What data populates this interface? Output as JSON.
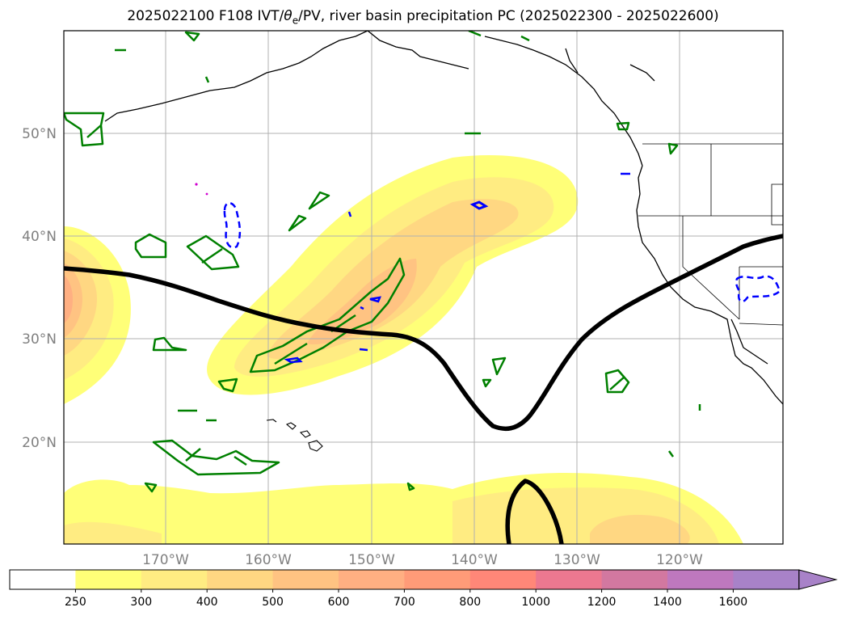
{
  "title": {
    "prefix": "2025022100 F108 IVT/",
    "theta": "θ",
    "sub": "e",
    "suffix": "/PV, river basin precipitation PC (2025022300 - 2025022600)"
  },
  "map": {
    "lat_labels": [
      "50°N",
      "40°N",
      "30°N",
      "20°N"
    ],
    "lon_labels": [
      "170°W",
      "160°W",
      "150°W",
      "140°W",
      "130°W",
      "120°W"
    ]
  },
  "colorbar": {
    "levels": [
      "250",
      "300",
      "400",
      "500",
      "600",
      "700",
      "800",
      "1000",
      "1200",
      "1400",
      "1600"
    ],
    "colors": [
      "#ffffff",
      "#ffff78",
      "#ffec82",
      "#ffd782",
      "#ffc382",
      "#ffaf82",
      "#ff9b78",
      "#ff8778",
      "#ec7890",
      "#d278a0",
      "#be78be",
      "#a882c8"
    ],
    "extend": "max"
  },
  "colors": {
    "pv_line": "#000000",
    "green_contour": "#008000",
    "blue_contour": "#0000ff",
    "grid": "#b0b0b0"
  }
}
